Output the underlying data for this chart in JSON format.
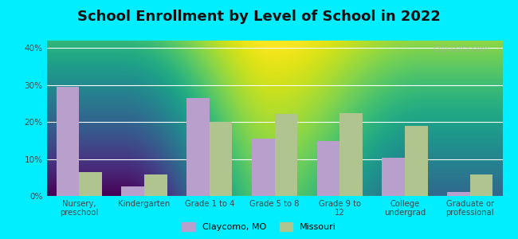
{
  "title": "School Enrollment by Level of School in 2022",
  "categories": [
    "Nursery,\npreschool",
    "Kindergarten",
    "Grade 1 to 4",
    "Grade 5 to 8",
    "Grade 9 to\n12",
    "College\nundergrad",
    "Graduate or\nprofessional"
  ],
  "claycomo": [
    29.5,
    2.5,
    26.5,
    15.5,
    14.8,
    10.3,
    1.0
  ],
  "missouri": [
    6.5,
    5.8,
    20.0,
    22.2,
    22.3,
    19.0,
    5.8
  ],
  "claycomo_color": "#b89fcc",
  "missouri_color": "#b0c490",
  "background_outer": "#00eeff",
  "background_plot_top": "#e8f8f0",
  "background_plot_bottom": "#c8ecd8",
  "title_fontsize": 13,
  "ylim": [
    0,
    42
  ],
  "yticks": [
    0,
    10,
    20,
    30,
    40
  ],
  "ytick_labels": [
    "0%",
    "10%",
    "20%",
    "30%",
    "40%"
  ],
  "legend_labels": [
    "Claycomo, MO",
    "Missouri"
  ],
  "watermark": "City-Data.com"
}
